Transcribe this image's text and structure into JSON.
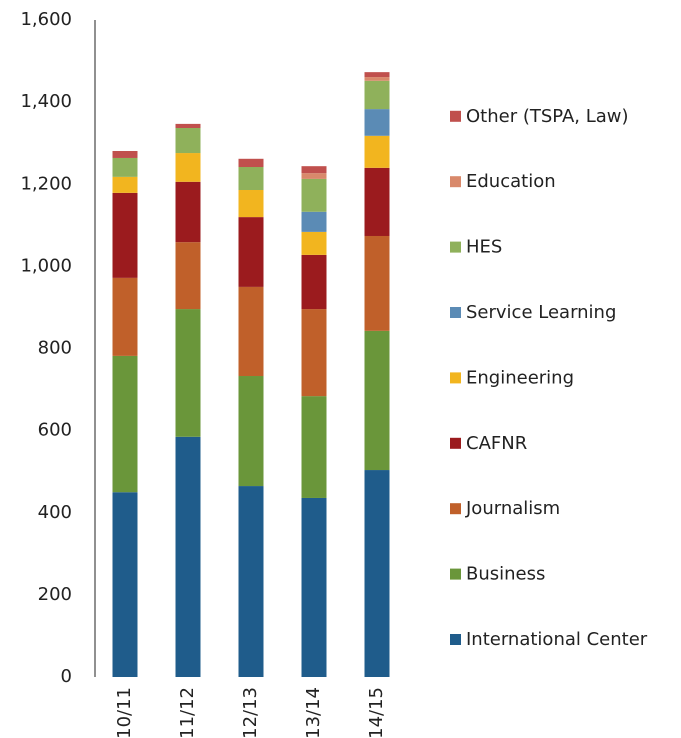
{
  "chart_data": {
    "type": "stacked_bar",
    "categories": [
      "10/11",
      "11/12",
      "12/13",
      "13/14",
      "14/15"
    ],
    "series": [
      {
        "name": "International Center",
        "color": "#1f5c8b",
        "values": [
          450,
          585,
          465,
          436,
          504
        ]
      },
      {
        "name": "Business",
        "color": "#6a963a",
        "values": [
          332,
          311,
          268,
          248,
          339
        ]
      },
      {
        "name": "Journalism",
        "color": "#c0602a",
        "values": [
          190,
          163,
          217,
          212,
          231
        ]
      },
      {
        "name": "CAFNR",
        "color": "#9b1b1e",
        "values": [
          207,
          147,
          170,
          132,
          166
        ]
      },
      {
        "name": "Engineering",
        "color": "#f2b51f",
        "values": [
          39,
          70,
          66,
          56,
          78
        ]
      },
      {
        "name": "Service Learning",
        "color": "#5b8bb5",
        "values": [
          0,
          0,
          0,
          49,
          65
        ]
      },
      {
        "name": "HES",
        "color": "#8fb15b",
        "values": [
          46,
          61,
          56,
          80,
          69
        ]
      },
      {
        "name": "Education",
        "color": "#d9896b",
        "values": [
          0,
          0,
          0,
          14,
          9
        ]
      },
      {
        "name": "Other (TSPA, Law)",
        "color": "#c0504d",
        "values": [
          17,
          10,
          20,
          17,
          12
        ]
      }
    ],
    "ylim": [
      0,
      1600
    ],
    "yticks": [
      0,
      200,
      400,
      600,
      800,
      {
        "value": 1000,
        "label": "1,000"
      },
      {
        "value": 1200,
        "label": "1,200"
      },
      {
        "value": 1400,
        "label": "1,400"
      },
      {
        "value": 1600,
        "label": "1,600"
      }
    ],
    "legend": "right"
  }
}
